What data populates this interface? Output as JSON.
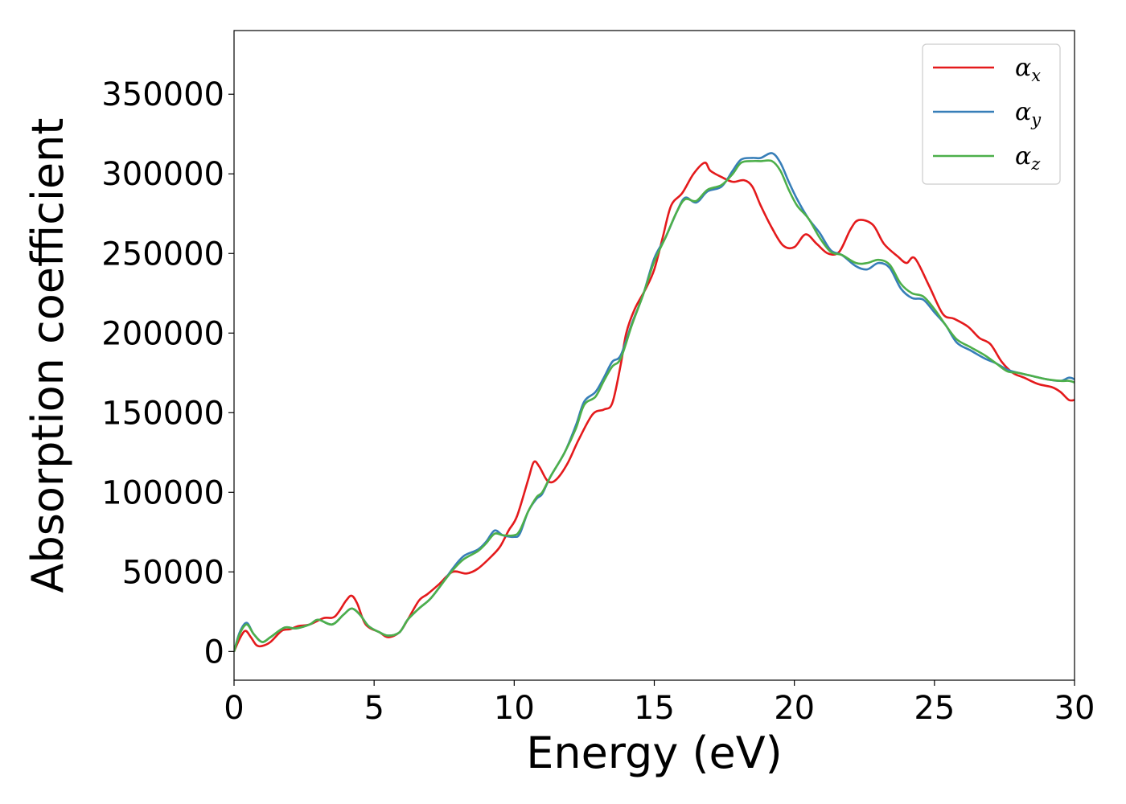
{
  "chart_data": {
    "type": "line",
    "title": "",
    "xlabel": "Energy (eV)",
    "ylabel": "Absorption coefficient",
    "xlim": [
      0,
      30
    ],
    "ylim": [
      -18000,
      390000
    ],
    "xticks": [
      0,
      5,
      10,
      15,
      20,
      25,
      30
    ],
    "yticks": [
      0,
      50000,
      100000,
      150000,
      200000,
      250000,
      300000,
      350000
    ],
    "grid": false,
    "legend_position": "top-right",
    "series": [
      {
        "name": "α",
        "sub": "x",
        "color": "#e41a1c",
        "points": [
          [
            0,
            0
          ],
          [
            0.2,
            8000
          ],
          [
            0.4,
            13000
          ],
          [
            0.6,
            9000
          ],
          [
            0.8,
            4000
          ],
          [
            1.0,
            3500
          ],
          [
            1.3,
            6000
          ],
          [
            1.7,
            13000
          ],
          [
            2.0,
            14000
          ],
          [
            2.3,
            16000
          ],
          [
            2.7,
            17000
          ],
          [
            3.2,
            21000
          ],
          [
            3.6,
            22000
          ],
          [
            4.0,
            32000
          ],
          [
            4.2,
            35000
          ],
          [
            4.4,
            30000
          ],
          [
            4.7,
            17000
          ],
          [
            5.2,
            12000
          ],
          [
            5.5,
            9000
          ],
          [
            5.9,
            12000
          ],
          [
            6.2,
            20000
          ],
          [
            6.6,
            32000
          ],
          [
            6.9,
            36000
          ],
          [
            7.3,
            42000
          ],
          [
            7.8,
            50000
          ],
          [
            8.3,
            49000
          ],
          [
            8.7,
            52000
          ],
          [
            9.2,
            60000
          ],
          [
            9.5,
            66000
          ],
          [
            9.8,
            76000
          ],
          [
            10.1,
            85000
          ],
          [
            10.5,
            108000
          ],
          [
            10.7,
            119000
          ],
          [
            10.9,
            116000
          ],
          [
            11.2,
            107000
          ],
          [
            11.5,
            108000
          ],
          [
            11.9,
            118000
          ],
          [
            12.3,
            133000
          ],
          [
            12.8,
            149000
          ],
          [
            13.2,
            152000
          ],
          [
            13.5,
            156000
          ],
          [
            13.8,
            180000
          ],
          [
            14.0,
            200000
          ],
          [
            14.3,
            215000
          ],
          [
            14.7,
            228000
          ],
          [
            15.0,
            240000
          ],
          [
            15.3,
            260000
          ],
          [
            15.6,
            280000
          ],
          [
            16.0,
            288000
          ],
          [
            16.4,
            300000
          ],
          [
            16.8,
            307000
          ],
          [
            17.0,
            302000
          ],
          [
            17.4,
            298000
          ],
          [
            17.8,
            295000
          ],
          [
            18.2,
            296000
          ],
          [
            18.5,
            292000
          ],
          [
            18.8,
            280000
          ],
          [
            19.2,
            266000
          ],
          [
            19.6,
            255000
          ],
          [
            20.0,
            254000
          ],
          [
            20.4,
            262000
          ],
          [
            20.8,
            256000
          ],
          [
            21.2,
            250000
          ],
          [
            21.6,
            251000
          ],
          [
            22.0,
            265000
          ],
          [
            22.3,
            271000
          ],
          [
            22.8,
            268000
          ],
          [
            23.2,
            256000
          ],
          [
            23.7,
            248000
          ],
          [
            24.0,
            244000
          ],
          [
            24.3,
            247000
          ],
          [
            24.8,
            230000
          ],
          [
            25.3,
            212000
          ],
          [
            25.7,
            209000
          ],
          [
            26.2,
            204000
          ],
          [
            26.6,
            197000
          ],
          [
            27.0,
            193000
          ],
          [
            27.4,
            182000
          ],
          [
            27.8,
            175000
          ],
          [
            28.2,
            172000
          ],
          [
            28.7,
            168000
          ],
          [
            29.2,
            166000
          ],
          [
            29.5,
            163000
          ],
          [
            29.8,
            158000
          ],
          [
            30.0,
            158000
          ]
        ]
      },
      {
        "name": "α",
        "sub": "y",
        "color": "#377eb8",
        "points": [
          [
            0,
            0
          ],
          [
            0.2,
            12000
          ],
          [
            0.45,
            18000
          ],
          [
            0.7,
            11000
          ],
          [
            1.0,
            6000
          ],
          [
            1.3,
            9000
          ],
          [
            1.8,
            15000
          ],
          [
            2.2,
            14500
          ],
          [
            2.7,
            17000
          ],
          [
            3.0,
            20000
          ],
          [
            3.5,
            17000
          ],
          [
            3.9,
            23000
          ],
          [
            4.2,
            27000
          ],
          [
            4.5,
            23000
          ],
          [
            4.8,
            16000
          ],
          [
            5.2,
            12000
          ],
          [
            5.5,
            10000
          ],
          [
            5.9,
            12000
          ],
          [
            6.2,
            20000
          ],
          [
            6.6,
            27000
          ],
          [
            7.0,
            33000
          ],
          [
            7.4,
            42000
          ],
          [
            7.8,
            52000
          ],
          [
            8.2,
            60000
          ],
          [
            8.7,
            64000
          ],
          [
            9.0,
            69000
          ],
          [
            9.3,
            76000
          ],
          [
            9.6,
            73000
          ],
          [
            10.0,
            72000
          ],
          [
            10.2,
            74000
          ],
          [
            10.5,
            88000
          ],
          [
            10.8,
            96000
          ],
          [
            11.0,
            99000
          ],
          [
            11.3,
            110000
          ],
          [
            11.8,
            125000
          ],
          [
            12.2,
            142000
          ],
          [
            12.5,
            157000
          ],
          [
            12.9,
            163000
          ],
          [
            13.2,
            172000
          ],
          [
            13.5,
            182000
          ],
          [
            13.8,
            186000
          ],
          [
            14.2,
            206000
          ],
          [
            14.6,
            224000
          ],
          [
            15.0,
            247000
          ],
          [
            15.4,
            260000
          ],
          [
            15.8,
            276000
          ],
          [
            16.1,
            285000
          ],
          [
            16.5,
            282000
          ],
          [
            16.9,
            289000
          ],
          [
            17.4,
            292000
          ],
          [
            17.8,
            302000
          ],
          [
            18.1,
            309000
          ],
          [
            18.5,
            310000
          ],
          [
            18.8,
            310000
          ],
          [
            19.2,
            313000
          ],
          [
            19.5,
            307000
          ],
          [
            19.8,
            295000
          ],
          [
            20.1,
            284000
          ],
          [
            20.5,
            272000
          ],
          [
            20.9,
            263000
          ],
          [
            21.3,
            252000
          ],
          [
            21.7,
            249000
          ],
          [
            22.2,
            242000
          ],
          [
            22.6,
            240000
          ],
          [
            23.0,
            244000
          ],
          [
            23.4,
            241000
          ],
          [
            23.8,
            228000
          ],
          [
            24.2,
            222000
          ],
          [
            24.6,
            221000
          ],
          [
            25.0,
            213000
          ],
          [
            25.4,
            205000
          ],
          [
            25.8,
            194000
          ],
          [
            26.3,
            189000
          ],
          [
            26.8,
            184000
          ],
          [
            27.2,
            181000
          ],
          [
            27.6,
            177000
          ],
          [
            28.0,
            175000
          ],
          [
            28.5,
            173000
          ],
          [
            29.0,
            171000
          ],
          [
            29.5,
            170000
          ],
          [
            29.8,
            172000
          ],
          [
            30.0,
            171000
          ]
        ]
      },
      {
        "name": "α",
        "sub": "z",
        "color": "#4daf4a",
        "points": [
          [
            0,
            0
          ],
          [
            0.2,
            11000
          ],
          [
            0.45,
            17000
          ],
          [
            0.7,
            11000
          ],
          [
            1.0,
            6000
          ],
          [
            1.3,
            9000
          ],
          [
            1.8,
            15000
          ],
          [
            2.2,
            14500
          ],
          [
            2.7,
            17000
          ],
          [
            3.0,
            20000
          ],
          [
            3.5,
            17000
          ],
          [
            3.9,
            23000
          ],
          [
            4.2,
            27000
          ],
          [
            4.5,
            23000
          ],
          [
            4.8,
            16000
          ],
          [
            5.2,
            12000
          ],
          [
            5.5,
            10000
          ],
          [
            5.9,
            12000
          ],
          [
            6.2,
            20000
          ],
          [
            6.6,
            27000
          ],
          [
            7.0,
            33000
          ],
          [
            7.4,
            42000
          ],
          [
            7.8,
            51000
          ],
          [
            8.2,
            58000
          ],
          [
            8.7,
            63000
          ],
          [
            9.0,
            68000
          ],
          [
            9.3,
            74000
          ],
          [
            9.6,
            73000
          ],
          [
            10.0,
            73000
          ],
          [
            10.2,
            76000
          ],
          [
            10.5,
            88000
          ],
          [
            10.8,
            97000
          ],
          [
            11.0,
            100000
          ],
          [
            11.3,
            110000
          ],
          [
            11.8,
            125000
          ],
          [
            12.2,
            140000
          ],
          [
            12.5,
            155000
          ],
          [
            12.9,
            160000
          ],
          [
            13.2,
            170000
          ],
          [
            13.5,
            179000
          ],
          [
            13.8,
            184000
          ],
          [
            14.2,
            205000
          ],
          [
            14.6,
            224000
          ],
          [
            15.0,
            245000
          ],
          [
            15.4,
            260000
          ],
          [
            15.8,
            276000
          ],
          [
            16.1,
            284000
          ],
          [
            16.5,
            283000
          ],
          [
            16.9,
            290000
          ],
          [
            17.4,
            293000
          ],
          [
            17.8,
            300000
          ],
          [
            18.1,
            307000
          ],
          [
            18.5,
            308000
          ],
          [
            18.8,
            308000
          ],
          [
            19.2,
            308000
          ],
          [
            19.5,
            302000
          ],
          [
            19.8,
            290000
          ],
          [
            20.1,
            280000
          ],
          [
            20.5,
            272000
          ],
          [
            20.9,
            260000
          ],
          [
            21.3,
            251000
          ],
          [
            21.7,
            249000
          ],
          [
            22.2,
            244000
          ],
          [
            22.6,
            244000
          ],
          [
            23.0,
            246000
          ],
          [
            23.4,
            243000
          ],
          [
            23.8,
            231000
          ],
          [
            24.2,
            225000
          ],
          [
            24.6,
            223000
          ],
          [
            25.0,
            215000
          ],
          [
            25.4,
            205000
          ],
          [
            25.8,
            196000
          ],
          [
            26.3,
            191000
          ],
          [
            26.8,
            186000
          ],
          [
            27.2,
            181000
          ],
          [
            27.6,
            176000
          ],
          [
            28.0,
            175000
          ],
          [
            28.5,
            173000
          ],
          [
            29.0,
            171000
          ],
          [
            29.5,
            170000
          ],
          [
            29.8,
            170000
          ],
          [
            30.0,
            169000
          ]
        ]
      }
    ]
  }
}
